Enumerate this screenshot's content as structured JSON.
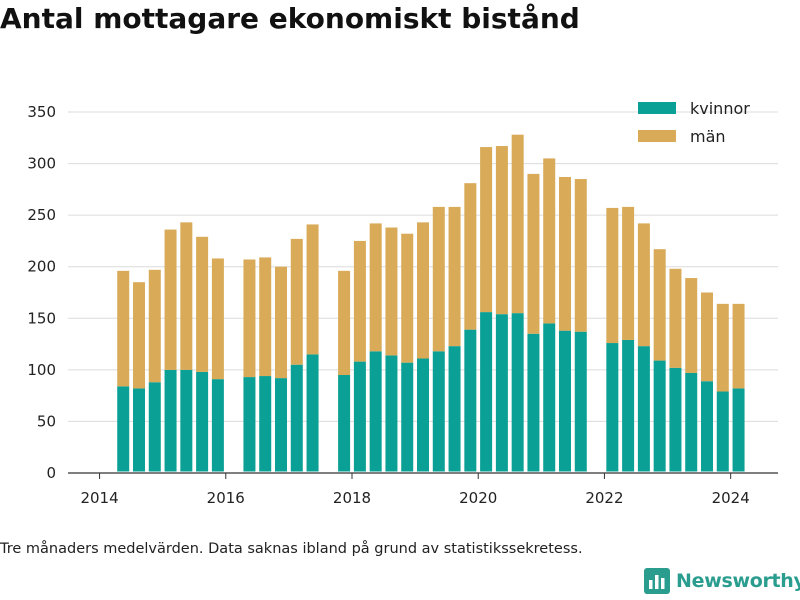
{
  "title": "Antal mottagare ekonomiskt bistånd",
  "footnote": "Tre månaders medelvärden. Data saknas ibland på grund av statistikssekretess.",
  "brand": "Newsworthy",
  "icons": {
    "brand_logo": "bar-chart-logo-icon"
  },
  "colors": {
    "kvinnor": "#0aa095",
    "man": "#d9aa57",
    "grid": "#dcdcdc",
    "brand": "#2a9d8f"
  },
  "chart_data": {
    "type": "bar",
    "stacked": true,
    "title": "Antal mottagare ekonomiskt bistånd",
    "xlabel": "",
    "ylabel": "",
    "ylim": [
      0,
      350
    ],
    "yticks": [
      0,
      50,
      100,
      150,
      200,
      250,
      300,
      350
    ],
    "xticks": [
      2014,
      2016,
      2018,
      2020,
      2022,
      2024
    ],
    "xlim": [
      2013.5,
      2024.75
    ],
    "grid": true,
    "legend_position": "top-right",
    "x": [
      2014.375,
      2014.625,
      2014.875,
      2015.125,
      2015.375,
      2015.625,
      2015.875,
      2016.375,
      2016.625,
      2016.875,
      2017.125,
      2017.375,
      2017.875,
      2018.125,
      2018.375,
      2018.625,
      2018.875,
      2019.125,
      2019.375,
      2019.625,
      2019.875,
      2020.125,
      2020.375,
      2020.625,
      2020.875,
      2021.125,
      2021.375,
      2021.625,
      2022.125,
      2022.375,
      2022.625,
      2022.875,
      2023.125,
      2023.375,
      2023.625,
      2023.875,
      2024.125
    ],
    "series": [
      {
        "name": "kvinnor",
        "values": [
          84,
          82,
          88,
          100,
          100,
          98,
          91,
          93,
          94,
          92,
          105,
          115,
          95,
          108,
          118,
          114,
          107,
          111,
          118,
          123,
          139,
          156,
          154,
          155,
          135,
          145,
          138,
          137,
          126,
          129,
          123,
          109,
          102,
          97,
          89,
          79,
          82
        ]
      },
      {
        "name": "män",
        "values": [
          112,
          103,
          109,
          136,
          143,
          131,
          117,
          114,
          115,
          108,
          122,
          126,
          101,
          117,
          124,
          124,
          125,
          132,
          140,
          135,
          142,
          160,
          163,
          173,
          155,
          160,
          149,
          148,
          131,
          129,
          119,
          108,
          96,
          92,
          86,
          85,
          82
        ]
      }
    ]
  }
}
